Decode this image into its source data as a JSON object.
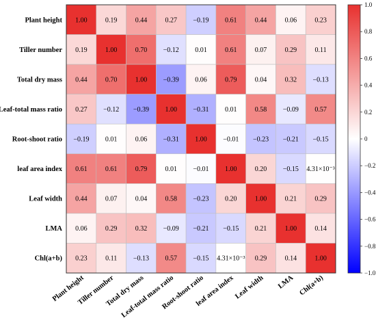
{
  "chart_data": {
    "type": "heatmap",
    "variables": [
      "Plant height",
      "Tiller number",
      "Total dry mass",
      "Leaf-total mass ratio",
      "Root-shoot ratio",
      "leaf area index",
      "Leaf width",
      "LMA",
      "Chl(a+b)"
    ],
    "values": [
      [
        1.0,
        0.19,
        0.44,
        0.27,
        -0.19,
        0.61,
        0.44,
        0.06,
        0.23
      ],
      [
        0.19,
        1.0,
        0.7,
        -0.12,
        0.01,
        0.61,
        0.07,
        0.29,
        0.11
      ],
      [
        0.44,
        0.7,
        1.0,
        -0.39,
        0.06,
        0.79,
        0.04,
        0.32,
        -0.13
      ],
      [
        0.27,
        -0.12,
        -0.39,
        1.0,
        -0.31,
        0.01,
        0.58,
        -0.09,
        0.57
      ],
      [
        -0.19,
        0.01,
        0.06,
        -0.31,
        1.0,
        -0.01,
        -0.23,
        -0.21,
        -0.15
      ],
      [
        0.61,
        0.61,
        0.79,
        0.01,
        -0.01,
        1.0,
        0.2,
        -0.15,
        0.00431
      ],
      [
        0.44,
        0.07,
        0.04,
        0.58,
        -0.23,
        0.2,
        1.0,
        0.21,
        0.29
      ],
      [
        0.06,
        0.29,
        0.32,
        -0.09,
        -0.21,
        -0.15,
        0.21,
        1.0,
        0.14
      ],
      [
        0.23,
        0.11,
        -0.13,
        0.57,
        -0.15,
        0.00431,
        0.29,
        0.14,
        1.0
      ]
    ],
    "labels": [
      [
        "1.00",
        "0.19",
        "0.44",
        "0.27",
        "−0.19",
        "0.61",
        "0.44",
        "0.06",
        "0.23"
      ],
      [
        "0.19",
        "1.00",
        "0.70",
        "−0.12",
        "0.01",
        "0.61",
        "0.07",
        "0.29",
        "0.11"
      ],
      [
        "0.44",
        "0.70",
        "1.00",
        "−0.39",
        "0.06",
        "0.79",
        "0.04",
        "0.32",
        "−0.13"
      ],
      [
        "0.27",
        "−0.12",
        "−0.39",
        "1.00",
        "−0.31",
        "0.01",
        "0.58",
        "−0.09",
        "0.57"
      ],
      [
        "−0.19",
        "0.01",
        "0.06",
        "−0.31",
        "1.00",
        "−0.01",
        "−0.23",
        "−0.21",
        "−0.15"
      ],
      [
        "0.61",
        "0.61",
        "0.79",
        "0.01",
        "−0.01",
        "1.00",
        "0.20",
        "−0.15",
        "4.31×10⁻³"
      ],
      [
        "0.44",
        "0.07",
        "0.04",
        "0.58",
        "−0.23",
        "0.20",
        "1.00",
        "0.21",
        "0.29"
      ],
      [
        "0.06",
        "0.29",
        "0.32",
        "−0.09",
        "−0.21",
        "−0.15",
        "0.21",
        "1.00",
        "0.14"
      ],
      [
        "0.23",
        "0.11",
        "−0.13",
        "0.57",
        "−0.15",
        "4.31×10⁻³",
        "0.29",
        "0.14",
        "1.00"
      ]
    ],
    "colorbar": {
      "range": [
        -1.0,
        1.0
      ],
      "ticks": [
        -1.0,
        -0.8,
        -0.6,
        -0.4,
        -0.2,
        0,
        0.2,
        0.4,
        0.6,
        0.8,
        1.0
      ],
      "tick_labels": [
        "−1.0",
        "−0.8",
        "−0.6",
        "−0.4",
        "−0.2",
        "0",
        "0.2",
        "0.4",
        "0.6",
        "0.8",
        "1.0"
      ],
      "colors": {
        "negative": "#0000ff",
        "zero": "#ffffff",
        "positive": "#e8312f"
      }
    },
    "title": "",
    "xlabel": "",
    "ylabel": ""
  }
}
